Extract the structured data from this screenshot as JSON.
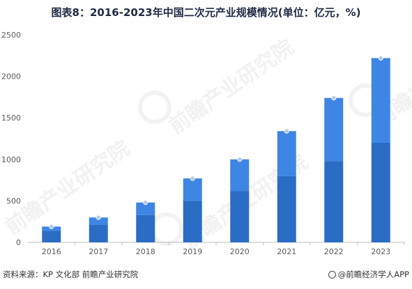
{
  "title": "图表8：2016-2023年中国二次元产业规模情况(单位：亿元，%)",
  "watermark": {
    "text": "前瞻产业研究院"
  },
  "footer": {
    "source": "资料来源：KP 文化部 前瞻产业研究院",
    "brand": "@前瞻经济学人APP"
  },
  "colors": {
    "bar_top": "#3d86e3",
    "bar_bottom": "#2a6dc4",
    "marker": "#b7c9e6",
    "axis": "#bfbfbf"
  },
  "chart_data": {
    "type": "bar",
    "stacked": true,
    "categories": [
      "2016",
      "2017",
      "2018",
      "2019",
      "2020",
      "2021",
      "2022",
      "2023"
    ],
    "series": [
      {
        "values": [
          140,
          210,
          330,
          500,
          620,
          800,
          980,
          1200
        ]
      },
      {
        "values": [
          50,
          90,
          150,
          270,
          380,
          540,
          760,
          1020
        ]
      }
    ],
    "totals": [
      190,
      300,
      480,
      770,
      1000,
      1340,
      1740,
      2220
    ],
    "yticks": [
      0,
      500,
      1000,
      1500,
      2000,
      2500
    ],
    "ylim": [
      0,
      2500
    ],
    "grid": false,
    "legend": "none"
  }
}
